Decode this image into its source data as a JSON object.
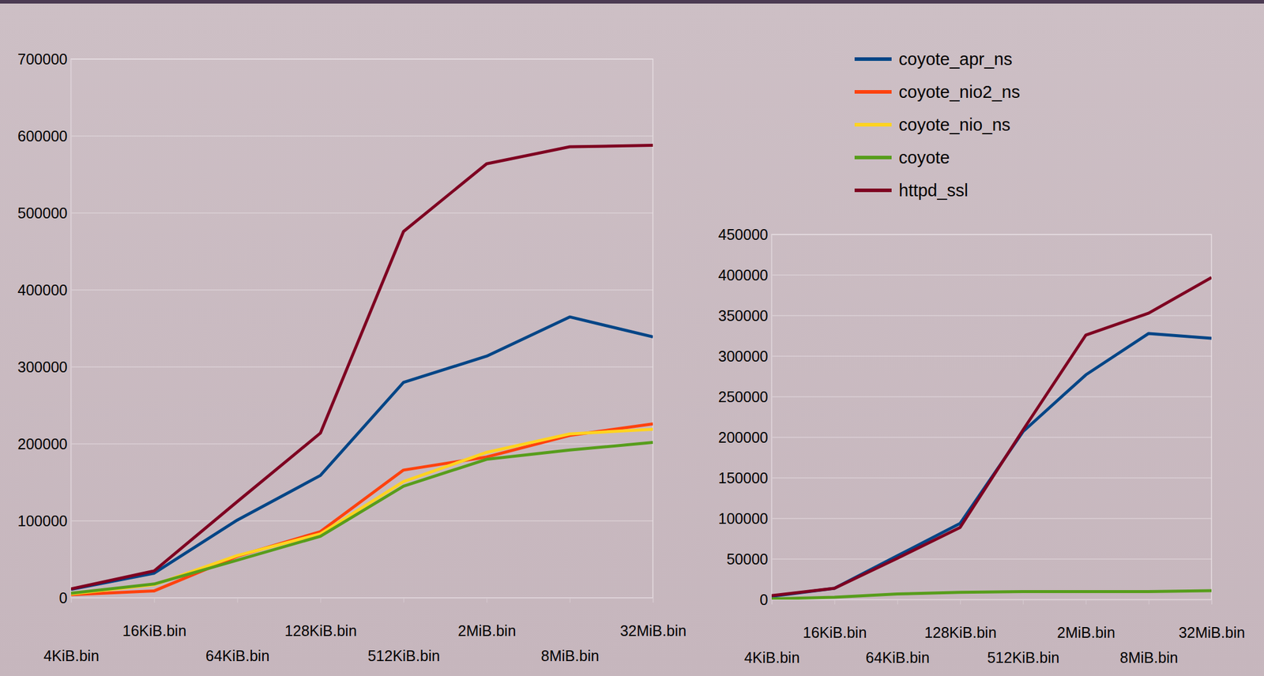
{
  "chart_data": [
    {
      "type": "line",
      "categories": [
        "4KiB.bin",
        "16KiB.bin",
        "64KiB.bin",
        "128KiB.bin",
        "512KiB.bin",
        "2MiB.bin",
        "8MiB.bin",
        "32MiB.bin"
      ],
      "series": [
        {
          "name": "coyote_apr_ns",
          "color": "#004586",
          "values": [
            11000,
            32000,
            101000,
            159000,
            280000,
            314000,
            365000,
            339000
          ]
        },
        {
          "name": "coyote_nio2_ns",
          "color": "#ff420e",
          "values": [
            4000,
            9000,
            54000,
            86000,
            166000,
            183000,
            211000,
            226000
          ]
        },
        {
          "name": "coyote_nio_ns",
          "color": "#ffd320",
          "values": [
            5000,
            17000,
            55000,
            83000,
            151000,
            189000,
            213000,
            219000
          ]
        },
        {
          "name": "coyote",
          "color": "#579d1c",
          "values": [
            6000,
            18000,
            49000,
            80000,
            145000,
            180000,
            192000,
            202000
          ]
        },
        {
          "name": "httpd_ssl",
          "color": "#7e0021",
          "values": [
            11500,
            35000,
            125000,
            214000,
            476000,
            564000,
            586000,
            588000
          ]
        }
      ],
      "ylim": [
        0,
        700000
      ],
      "yticks": [
        0,
        100000,
        200000,
        300000,
        400000,
        500000,
        600000,
        700000
      ],
      "grid": true,
      "legend": "top-right"
    },
    {
      "type": "line",
      "categories": [
        "4KiB.bin",
        "16KiB.bin",
        "64KiB.bin",
        "128KiB.bin",
        "512KiB.bin",
        "2MiB.bin",
        "8MiB.bin",
        "32MiB.bin"
      ],
      "series": [
        {
          "name": "coyote_apr_ns",
          "color": "#004586",
          "values": [
            4000,
            14000,
            54000,
            94000,
            207000,
            277000,
            328000,
            322000
          ]
        },
        {
          "name": "httpd_ssl",
          "color": "#7e0021",
          "values": [
            5000,
            14000,
            51000,
            89000,
            209000,
            326000,
            353000,
            397000
          ]
        },
        {
          "name": "coyote",
          "color": "#579d1c",
          "values": [
            1000,
            3000,
            7000,
            9000,
            10000,
            10000,
            10000,
            11000
          ]
        }
      ],
      "ylim": [
        0,
        450000
      ],
      "yticks": [
        0,
        50000,
        100000,
        150000,
        200000,
        250000,
        300000,
        350000,
        400000,
        450000
      ],
      "grid": true
    }
  ]
}
